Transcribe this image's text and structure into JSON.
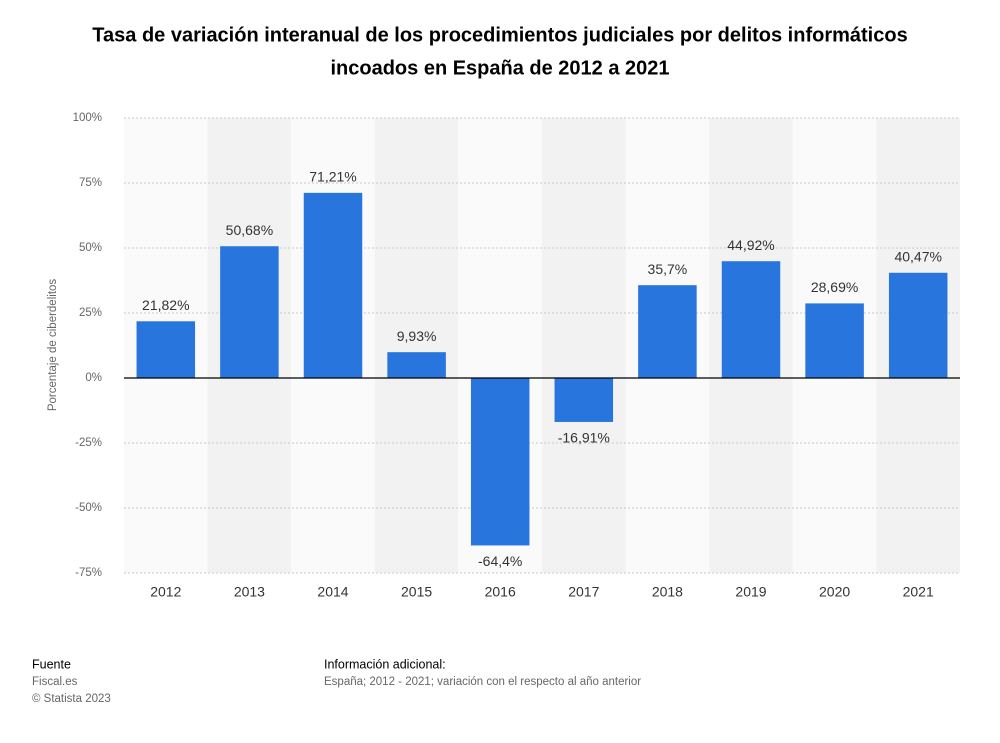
{
  "chart_data": {
    "type": "bar",
    "title": "Tasa de variación interanual de los procedimientos judiciales por delitos informáticos",
    "title_line2": "incoados en España de 2012 a 2021",
    "y_label": "Porcentaje de ciberdelitos",
    "categories": [
      "2012",
      "2013",
      "2014",
      "2015",
      "2016",
      "2017",
      "2018",
      "2019",
      "2020",
      "2021"
    ],
    "values": [
      21.82,
      50.68,
      71.21,
      9.93,
      -64.4,
      -16.91,
      35.7,
      44.92,
      28.69,
      40.47
    ],
    "value_labels": [
      "21,82%",
      "50,68%",
      "71,21%",
      "9,93%",
      "-64,4%",
      "-16,91%",
      "35,7%",
      "44,92%",
      "28,69%",
      "40,47%"
    ],
    "color": "#2876dd",
    "ylim": [
      -75,
      100
    ],
    "yticks": [
      {
        "value": -75,
        "label": "-75%"
      },
      {
        "value": -50,
        "label": "-50%"
      },
      {
        "value": -25,
        "label": "-25%"
      },
      {
        "value": 0,
        "label": "0%"
      },
      {
        "value": 25,
        "label": "25%"
      },
      {
        "value": 50,
        "label": "50%"
      },
      {
        "value": 75,
        "label": "75%"
      },
      {
        "value": 100,
        "label": "100%"
      }
    ],
    "grid": true,
    "source_heading": "Fuente",
    "source": "Fiscal.es",
    "copyright": "© Statista 2023",
    "info_heading": "Información adicional:",
    "info": "España; 2012 - 2021; variación con el respecto al año anterior"
  }
}
